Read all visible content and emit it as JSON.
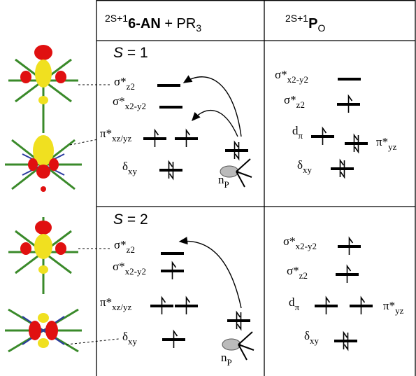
{
  "headers": [
    {
      "sup": "2S+1",
      "bold": "6-AN",
      "text": " + PR",
      "sub": "3"
    },
    {
      "sup": "2S+1",
      "bold": "P",
      "sub": "O"
    }
  ],
  "panels": [
    {
      "spin_symbol": "S",
      "spin_value": " = 1",
      "left": [
        {
          "base": "σ*",
          "sub": "z2",
          "occ": [
            0
          ]
        },
        {
          "base": "σ*",
          "sub": "x2-y2",
          "occ": [
            0
          ]
        },
        {
          "base": "π*",
          "sub": "xz/yz",
          "occ": [
            1,
            1
          ]
        },
        {
          "base": "δ",
          "sub": "xy",
          "occ": [
            2
          ]
        }
      ],
      "lone_pair": {
        "base": "n",
        "sub": "P",
        "occ": [
          2
        ]
      },
      "right": [
        {
          "base": "σ*",
          "sub": "x2-y2",
          "occ": [
            0
          ]
        },
        {
          "base": "σ*",
          "sub": "z2",
          "occ": [
            1
          ]
        },
        {
          "base": "d",
          "sub": "π",
          "occ": [
            1
          ]
        },
        {
          "base": "π*",
          "sub": "yz",
          "occ": [
            2
          ]
        },
        {
          "base": "δ",
          "sub": "xy",
          "occ": [
            2
          ]
        }
      ]
    },
    {
      "spin_symbol": "S",
      "spin_value": " = 2",
      "left": [
        {
          "base": "σ*",
          "sub": "z2",
          "occ": [
            0
          ]
        },
        {
          "base": "σ*",
          "sub": "x2-y2",
          "occ": [
            1
          ]
        },
        {
          "base": "π*",
          "sub": "xz/yz",
          "occ": [
            1,
            1
          ]
        },
        {
          "base": "δ",
          "sub": "xy",
          "occ": [
            1
          ]
        }
      ],
      "lone_pair": {
        "base": "n",
        "sub": "P",
        "occ": [
          2
        ]
      },
      "right": [
        {
          "base": "σ*",
          "sub": "x2-y2",
          "occ": [
            1
          ]
        },
        {
          "base": "σ*",
          "sub": "z2",
          "occ": [
            1
          ]
        },
        {
          "base": "d",
          "sub": "π",
          "occ": [
            1
          ]
        },
        {
          "base": "π*",
          "sub": "yz",
          "occ": [
            1
          ]
        },
        {
          "base": "δ",
          "sub": "xy",
          "occ": [
            2
          ]
        }
      ]
    }
  ]
}
